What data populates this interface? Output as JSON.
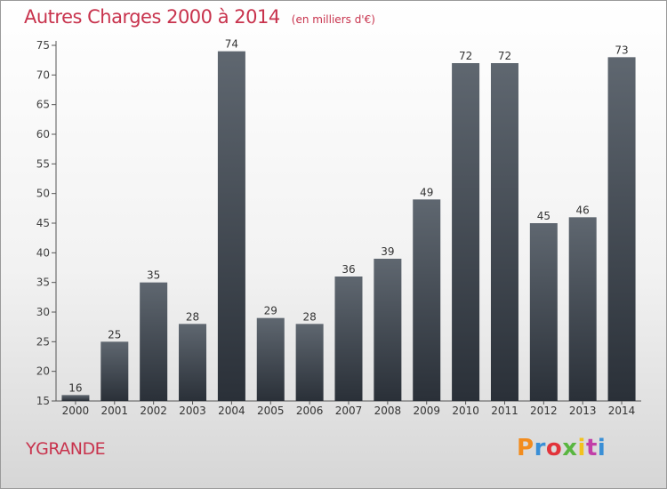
{
  "header": {
    "title": "Autres Charges 2000 à 2014",
    "subtitle": "(en milliers d'€)"
  },
  "footer": {
    "commune": "YGRANDE",
    "logo_text": "Proxiti"
  },
  "colors": {
    "title": "#c8334d",
    "bar_top": "#5f6770",
    "bar_bottom": "#2a3038",
    "axis": "#555555"
  },
  "chart_data": {
    "type": "bar",
    "title": "Autres Charges 2000 à 2014",
    "subtitle": "(en milliers d'€)",
    "categories": [
      "2000",
      "2001",
      "2002",
      "2003",
      "2004",
      "2005",
      "2006",
      "2007",
      "2008",
      "2009",
      "2010",
      "2011",
      "2012",
      "2013",
      "2014"
    ],
    "values": [
      16,
      25,
      35,
      28,
      74,
      29,
      28,
      36,
      39,
      49,
      72,
      72,
      45,
      46,
      73
    ],
    "ylim": [
      15,
      75
    ],
    "yticks": [
      15,
      20,
      25,
      30,
      35,
      40,
      45,
      50,
      55,
      60,
      65,
      70,
      75
    ],
    "grid": false,
    "data_labels": true
  }
}
